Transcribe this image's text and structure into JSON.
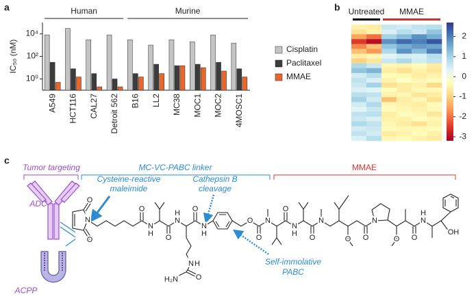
{
  "panels": [
    "a",
    "b",
    "c"
  ],
  "chart_data": [
    {
      "type": "bar",
      "log_y": true,
      "y_label": "IC₅₀ (nM)",
      "categories": [
        "A549",
        "HCT116",
        "CAL27",
        "Detroit 562",
        "B16",
        "LL2",
        "MC38",
        "MOC1",
        "MOC2",
        "4MOSC1"
      ],
      "groups": [
        {
          "label": "Human",
          "count": 4
        },
        {
          "label": "Murine",
          "count": 6
        }
      ],
      "series": [
        {
          "name": "Cisplatin",
          "color": "#c4c4c4",
          "values": [
            8000,
            30000,
            3000,
            8000,
            3000,
            1000,
            3000,
            2000,
            8000,
            1500
          ]
        },
        {
          "name": "Paclitaxel",
          "color": "#3c3c3c",
          "values": [
            30,
            8,
            3,
            1,
            3,
            20,
            15,
            20,
            30,
            8
          ]
        },
        {
          "name": "MMAE",
          "color": "#e8672c",
          "values": [
            0.5,
            1.5,
            0.2,
            0.2,
            1.5,
            3,
            15,
            10,
            5,
            1.5
          ]
        }
      ],
      "ylim": [
        0.1,
        100000
      ],
      "yticks": [
        {
          "value": 1,
          "label": "10⁰"
        },
        {
          "value": 100,
          "label": "10²"
        },
        {
          "value": 10000,
          "label": "10⁴"
        }
      ],
      "legend": "right"
    },
    {
      "type": "heatmap",
      "groups": [
        {
          "label": "Untreated",
          "color": "#000000",
          "count": 2
        },
        {
          "label": "MMAE",
          "color": "#e02a2a",
          "count": 4
        }
      ],
      "colorscale": [
        "#a50026",
        "#d73027",
        "#f46d43",
        "#fdae61",
        "#fee090",
        "#ffffbf",
        "#e0f3f8",
        "#abd9e9",
        "#74add1",
        "#4575b4",
        "#313695"
      ],
      "zlim": [
        -3.2,
        2.7
      ],
      "zticks": [
        2,
        1,
        0,
        -1,
        -2,
        -3
      ],
      "z": [
        [
          -0.5,
          -0.6,
          0.6,
          0.5,
          0.7,
          0.8
        ],
        [
          -0.8,
          -0.5,
          0.4,
          0.8,
          0.6,
          1.2
        ],
        [
          -1.5,
          -2.0,
          1.0,
          1.3,
          1.8,
          1.5
        ],
        [
          -2.5,
          -3.0,
          1.8,
          2.2,
          2.0,
          2.4
        ],
        [
          -1.8,
          -1.2,
          1.2,
          1.5,
          1.7,
          1.6
        ],
        [
          -1.2,
          -1.6,
          0.9,
          1.8,
          1.3,
          2.0
        ],
        [
          -0.6,
          -0.4,
          0.3,
          0.5,
          0.4,
          0.8
        ],
        [
          -1.0,
          -0.7,
          0.6,
          0.9,
          0.5,
          0.7
        ],
        [
          0.9,
          0.6,
          -0.4,
          -0.5,
          -0.3,
          -0.6
        ],
        [
          1.2,
          1.4,
          -0.6,
          -0.8,
          -0.5,
          -0.7
        ],
        [
          0.5,
          0.8,
          -0.3,
          -0.4,
          -0.6,
          -0.5
        ],
        [
          0.7,
          0.4,
          -0.5,
          -0.2,
          -0.4,
          -0.3
        ],
        [
          0.6,
          1.0,
          -0.8,
          -0.6,
          -0.5,
          -0.9
        ],
        [
          0.4,
          0.3,
          -0.3,
          -0.6,
          -0.4,
          -0.4
        ],
        [
          0.8,
          0.7,
          -0.5,
          -0.4,
          -0.7,
          -0.6
        ],
        [
          1.0,
          0.5,
          -1.2,
          -0.6,
          -0.4,
          -0.8
        ],
        [
          0.5,
          0.9,
          -0.4,
          -0.5,
          -0.6,
          -0.3
        ],
        [
          0.3,
          0.6,
          -0.3,
          -0.4,
          -0.5,
          -0.4
        ],
        [
          0.7,
          0.8,
          -0.6,
          -0.3,
          -0.4,
          -0.7
        ],
        [
          0.6,
          0.4,
          -0.5,
          -0.5,
          -0.3,
          -0.4
        ],
        [
          0.9,
          0.7,
          -0.4,
          -0.6,
          -0.8,
          -0.5
        ],
        [
          0.5,
          0.6,
          -0.3,
          -0.4,
          -0.4,
          -0.3
        ],
        [
          0.7,
          0.5,
          -0.6,
          -0.5,
          -0.3,
          -0.5
        ],
        [
          0.4,
          0.8,
          -0.4,
          -0.3,
          -0.5,
          -0.6
        ]
      ]
    }
  ],
  "diagram": {
    "sections": [
      "Tumor targeting",
      "MC-VC-PABC linker",
      "MMAE"
    ],
    "icons": [
      "ADC",
      "ACPP"
    ],
    "annotations": [
      [
        "Cysteine-reactive",
        "maleimide"
      ],
      [
        "Cathepsin B",
        "cleavage"
      ],
      [
        "Self-immolative",
        "PABC"
      ]
    ],
    "atoms": [
      "O",
      "N",
      "O",
      "O",
      "N",
      "H",
      "O",
      "N",
      "H",
      "O",
      "N",
      "H",
      "N",
      "H",
      "O",
      "H₂N",
      "O",
      "O",
      "N",
      "O",
      "N",
      "H",
      "O",
      "N",
      "O",
      "O",
      "N",
      "O",
      "O",
      "N",
      "H",
      "OH"
    ]
  }
}
